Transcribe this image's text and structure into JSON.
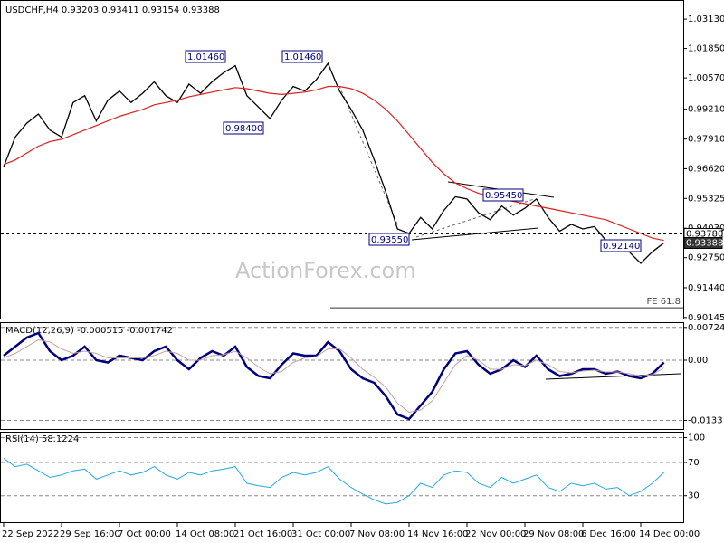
{
  "chart_data": [
    {
      "type": "line",
      "title": "USDCHF,H4  0.93203 0.93411 0.93154 0.93388",
      "watermark": "ActionForex.com",
      "categories": [
        "22 Sep 2022",
        null,
        null,
        null,
        null,
        "29 Sep 16:00",
        null,
        null,
        null,
        null,
        "7 Oct 00:00",
        null,
        null,
        null,
        null,
        "14 Oct 08:00",
        null,
        null,
        null,
        null,
        "21 Oct 16:00",
        null,
        null,
        null,
        null,
        "31 Oct 00:00",
        null,
        null,
        null,
        null,
        "7 Nov 08:00",
        null,
        null,
        null,
        null,
        "14 Nov 16:00",
        null,
        null,
        null,
        null,
        "22 Nov 00:00",
        null,
        null,
        null,
        null,
        "29 Nov 08:00",
        null,
        null,
        null,
        null,
        "6 Dec 16:00",
        null,
        null,
        null,
        null,
        "14 Dec 00:00",
        null,
        null
      ],
      "series": [
        {
          "color": "#000000",
          "values": [
            0.967,
            0.98,
            0.986,
            0.99,
            0.983,
            0.98,
            0.995,
            0.998,
            0.987,
            0.996,
            1.0,
            0.995,
            0.999,
            1.004,
            0.998,
            0.995,
            1.003,
            0.999,
            1.004,
            1.008,
            1.011,
            0.998,
            0.993,
            0.988,
            0.996,
            1.002,
            1.0,
            1.005,
            1.012,
            1.0,
            0.992,
            0.983,
            0.97,
            0.956,
            0.94,
            0.938,
            0.945,
            0.94,
            0.948,
            0.954,
            0.953,
            0.947,
            0.944,
            0.95,
            0.946,
            0.949,
            0.953,
            0.945,
            0.939,
            0.942,
            0.94,
            0.941,
            0.935,
            0.933,
            0.93,
            0.925,
            0.93,
            0.9339
          ]
        },
        {
          "color": "#e02020",
          "values": [
            0.968,
            0.97,
            0.973,
            0.976,
            0.978,
            0.979,
            0.981,
            0.983,
            0.985,
            0.987,
            0.989,
            0.9905,
            0.992,
            0.994,
            0.995,
            0.996,
            0.9975,
            0.9985,
            0.9995,
            1.0005,
            1.0015,
            1.001,
            1.0,
            0.999,
            0.9985,
            0.999,
            0.9995,
            1.0005,
            1.002,
            1.002,
            1.001,
            0.999,
            0.996,
            0.992,
            0.987,
            0.981,
            0.975,
            0.969,
            0.964,
            0.96,
            0.9575,
            0.9555,
            0.954,
            0.953,
            0.952,
            0.951,
            0.95,
            0.949,
            0.948,
            0.947,
            0.946,
            0.945,
            0.944,
            0.942,
            0.94,
            0.938,
            0.936,
            0.935
          ]
        }
      ],
      "ylim": [
        0.901,
        1.0396
      ],
      "yticks": [
        {
          "value": 1.0313,
          "label": "1.03130"
        },
        {
          "value": 1.0185,
          "label": "1.01850"
        },
        {
          "value": 1.0057,
          "label": "1.00570"
        },
        {
          "value": 0.9921,
          "label": "0.99210"
        },
        {
          "value": 0.9791,
          "label": "0.97910"
        },
        {
          "value": 0.9662,
          "label": "0.96620"
        },
        0.95325,
        {
          "value": 0.9403,
          "label": "0.94030"
        },
        {
          "value": 0.9275,
          "label": "0.92750"
        },
        {
          "value": 0.9144,
          "label": "0.91440"
        },
        0.90145
      ],
      "level_lines": [
        {
          "value": 0.9378,
          "label": "0.93780"
        },
        {
          "value": 0.93388,
          "label": "0.93388"
        }
      ],
      "fe_line": {
        "value": 0.9057,
        "label": "FE 61.8"
      },
      "annotations": [
        "1.01460",
        "1.01460",
        "0.98400",
        "0.95450",
        "0.93550",
        "0.92140"
      ]
    },
    {
      "type": "line",
      "title": "MACD(12,26,9) -0.000515 -0.001742",
      "series": [
        {
          "color": "#00007f",
          "values": [
            0.001,
            0.003,
            0.005,
            0.006,
            0.002,
            0.0,
            0.001,
            0.003,
            0.0,
            -0.0005,
            0.001,
            0.0005,
            0.0,
            0.002,
            0.003,
            0.0,
            -0.002,
            0.0005,
            0.002,
            0.001,
            0.003,
            -0.0015,
            -0.0035,
            -0.004,
            -0.001,
            0.0015,
            0.001,
            0.001,
            0.004,
            0.002,
            -0.002,
            -0.004,
            -0.005,
            -0.008,
            -0.012,
            -0.013,
            -0.01,
            -0.007,
            -0.002,
            0.0015,
            0.002,
            -0.001,
            -0.003,
            -0.002,
            0.0,
            -0.0015,
            0.001,
            -0.002,
            -0.0035,
            -0.003,
            -0.002,
            -0.002,
            -0.003,
            -0.0025,
            -0.0035,
            -0.004,
            -0.003,
            -0.0005
          ]
        },
        {
          "color": "#c8a0a0",
          "values": [
            0.0005,
            0.0015,
            0.003,
            0.0045,
            0.004,
            0.0025,
            0.0015,
            0.002,
            0.0015,
            0.0005,
            0.0005,
            0.0005,
            0.0005,
            0.001,
            0.002,
            0.0015,
            0.0,
            0.0,
            0.001,
            0.0012,
            0.002,
            0.0005,
            -0.0015,
            -0.003,
            -0.0025,
            -0.0005,
            0.0005,
            0.0008,
            0.0025,
            0.0025,
            0.0005,
            -0.002,
            -0.0038,
            -0.006,
            -0.0095,
            -0.0115,
            -0.011,
            -0.009,
            -0.005,
            -0.001,
            0.001,
            0.0,
            -0.002,
            -0.002,
            -0.001,
            -0.0012,
            0.0,
            -0.001,
            -0.0025,
            -0.0028,
            -0.0024,
            -0.0022,
            -0.0026,
            -0.0026,
            -0.003,
            -0.0035,
            -0.0032,
            -0.0017
          ]
        }
      ],
      "ylim": [
        -0.0154,
        0.0082
      ],
      "yticks": [
        0.00724,
        {
          "value": 0,
          "label": "0.00"
        },
        -0.0133
      ]
    },
    {
      "type": "line",
      "title": "RSI(14) 58.1224",
      "series": [
        {
          "color": "#22a8e8",
          "values": [
            75,
            65,
            68,
            60,
            52,
            55,
            60,
            62,
            50,
            55,
            60,
            55,
            58,
            65,
            55,
            50,
            58,
            55,
            60,
            62,
            65,
            45,
            42,
            40,
            52,
            58,
            55,
            58,
            65,
            50,
            40,
            32,
            25,
            20,
            22,
            30,
            45,
            40,
            55,
            60,
            58,
            45,
            40,
            52,
            45,
            50,
            55,
            40,
            35,
            45,
            42,
            45,
            38,
            40,
            30,
            35,
            45,
            58
          ]
        }
      ],
      "ylim": [
        -3,
        106
      ],
      "yticks": [
        100,
        70,
        30
      ]
    }
  ]
}
